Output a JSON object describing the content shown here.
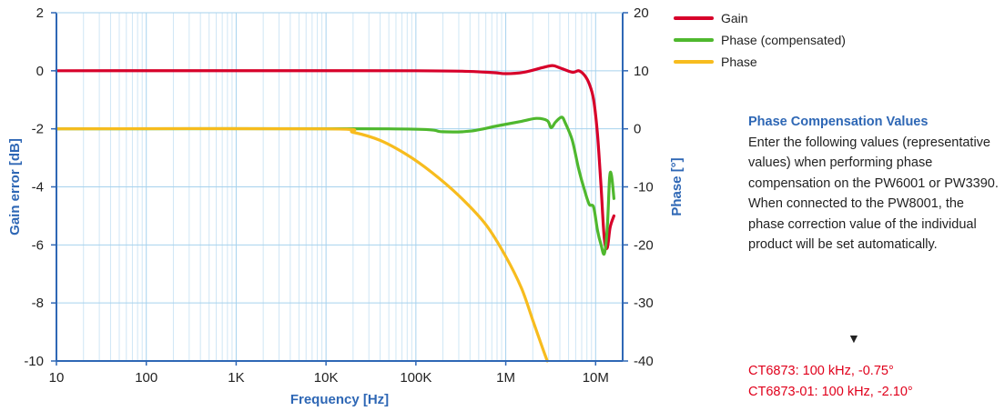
{
  "chart_data": {
    "type": "line",
    "xlabel": "Frequency [Hz]",
    "ylabel_left": "Gain error [dB]",
    "ylabel_right": "Phase [°]",
    "x_scale": "log",
    "xlim": [
      10,
      20000000
    ],
    "ylim_left": [
      -10,
      2
    ],
    "ylim_right": [
      -40,
      20
    ],
    "x_ticks": [
      10,
      100,
      1000,
      10000,
      100000,
      1000000,
      10000000
    ],
    "x_tick_labels": [
      "10",
      "100",
      "1K",
      "10K",
      "100K",
      "1M",
      "10M"
    ],
    "y_left_ticks": [
      "2",
      "0",
      "-2",
      "-4",
      "-6",
      "-8",
      "-10"
    ],
    "y_right_ticks": [
      "20",
      "10",
      "0",
      "-10",
      "-20",
      "-30",
      "-40"
    ],
    "grid": true,
    "legend_position": "right",
    "series": [
      {
        "name": "Gain",
        "axis": "left",
        "color": "#d7002a",
        "points": [
          [
            10,
            0
          ],
          [
            100000,
            0
          ],
          [
            600000,
            -0.05
          ],
          [
            1000000,
            -0.1
          ],
          [
            1600000,
            -0.05
          ],
          [
            2500000,
            0.1
          ],
          [
            3300000,
            0.18
          ],
          [
            4000000,
            0.1
          ],
          [
            5500000,
            -0.05
          ],
          [
            6500000,
            0
          ],
          [
            7500000,
            -0.15
          ],
          [
            8500000,
            -0.45
          ],
          [
            9500000,
            -1.0
          ],
          [
            10500000,
            -2.2
          ],
          [
            11500000,
            -4.0
          ],
          [
            12500000,
            -5.8
          ],
          [
            13500000,
            -6.1
          ],
          [
            14500000,
            -5.4
          ],
          [
            16000000,
            -5.0
          ]
        ]
      },
      {
        "name": "Phase (compensated)",
        "axis": "right",
        "color": "#4fb82e",
        "points": [
          [
            10,
            0
          ],
          [
            50000,
            0
          ],
          [
            200000,
            -0.5
          ],
          [
            400000,
            -0.4
          ],
          [
            800000,
            0.5
          ],
          [
            1500000,
            1.3
          ],
          [
            2200000,
            1.8
          ],
          [
            2900000,
            1.4
          ],
          [
            3200000,
            0.2
          ],
          [
            3600000,
            1.2
          ],
          [
            4200000,
            2.0
          ],
          [
            4600000,
            1.0
          ],
          [
            5500000,
            -2.0
          ],
          [
            6500000,
            -7.0
          ],
          [
            7500000,
            -10.5
          ],
          [
            8500000,
            -13.0
          ],
          [
            9500000,
            -13.5
          ],
          [
            10500000,
            -17.5
          ],
          [
            11500000,
            -20.0
          ],
          [
            12500000,
            -21.5
          ],
          [
            13500000,
            -17.0
          ],
          [
            14300000,
            -8.5
          ],
          [
            15000000,
            -8.0
          ],
          [
            16000000,
            -12.0
          ]
        ]
      },
      {
        "name": "Phase",
        "axis": "right",
        "color": "#f7bc1e",
        "points": [
          [
            10,
            0
          ],
          [
            10000,
            0
          ],
          [
            20000,
            -0.6
          ],
          [
            40000,
            -2.0
          ],
          [
            80000,
            -4.5
          ],
          [
            150000,
            -7.5
          ],
          [
            300000,
            -11.5
          ],
          [
            600000,
            -16.5
          ],
          [
            1000000,
            -22.0
          ],
          [
            1500000,
            -27.5
          ],
          [
            2000000,
            -33.0
          ],
          [
            2600000,
            -38.0
          ],
          [
            2900000,
            -40.0
          ]
        ]
      }
    ]
  },
  "legend": {
    "items": [
      {
        "label": "Gain",
        "color": "#d7002a"
      },
      {
        "label": "Phase (compensated)",
        "color": "#4fb82e"
      },
      {
        "label": "Phase",
        "color": "#f7bc1e"
      }
    ]
  },
  "info": {
    "title": "Phase Compensation Values",
    "body": "Enter the following values (representative values) when performing phase compensation on the PW6001 or PW3390. When connected to the PW8001, the phase correction value of the individual product will be set automatically.",
    "arrow": "▼",
    "values": [
      "CT6873: 100 kHz, -0.75°",
      "CT6873-01: 100 kHz, -2.10°"
    ]
  }
}
